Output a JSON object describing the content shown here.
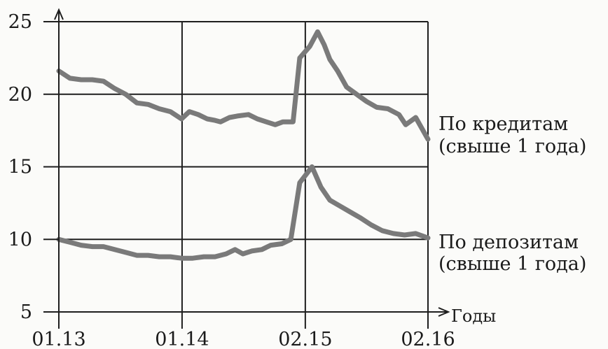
{
  "chart_data": {
    "type": "line",
    "xlabel": "Годы",
    "ylabel": "",
    "ylim": [
      5,
      25
    ],
    "x_ticks": [
      "01.13",
      "01.14",
      "02.15",
      "02.16"
    ],
    "y_ticks": [
      "5",
      "10",
      "15",
      "20",
      "25"
    ],
    "grid": true,
    "series_color": "#7a7a7a",
    "series": [
      {
        "name": "По кредитам (свыше 1 года)",
        "label_lines": [
          "По кредитам",
          "(свыше 1 года)"
        ],
        "points": [
          [
            0,
            21.6
          ],
          [
            1,
            21.1
          ],
          [
            2,
            21.0
          ],
          [
            3,
            21.0
          ],
          [
            4,
            20.9
          ],
          [
            5,
            20.4
          ],
          [
            6,
            20.0
          ],
          [
            7,
            19.4
          ],
          [
            8,
            19.3
          ],
          [
            9,
            19.0
          ],
          [
            10,
            18.8
          ],
          [
            11,
            18.3
          ],
          [
            11.7,
            18.8
          ],
          [
            12.5,
            18.6
          ],
          [
            13.3,
            18.3
          ],
          [
            14,
            18.2
          ],
          [
            14.5,
            18.1
          ],
          [
            15.3,
            18.4
          ],
          [
            16,
            18.5
          ],
          [
            17,
            18.6
          ],
          [
            17.8,
            18.3
          ],
          [
            18.6,
            18.1
          ],
          [
            19.4,
            17.9
          ],
          [
            20.1,
            18.1
          ],
          [
            21,
            18.1
          ],
          [
            21.6,
            22.5
          ],
          [
            22.5,
            23.3
          ],
          [
            23.2,
            24.3
          ],
          [
            23.8,
            23.4
          ],
          [
            24.3,
            22.4
          ],
          [
            25,
            21.6
          ],
          [
            25.8,
            20.5
          ],
          [
            26.7,
            20.0
          ],
          [
            27.6,
            19.5
          ],
          [
            28.5,
            19.1
          ],
          [
            29.5,
            19.0
          ],
          [
            30.5,
            18.6
          ],
          [
            31.1,
            17.9
          ],
          [
            32,
            18.4
          ],
          [
            33.1,
            16.9
          ]
        ]
      },
      {
        "name": "По депозитам (свыше 1 года)",
        "label_lines": [
          "По депозитам",
          "(свыше 1 года)"
        ],
        "points": [
          [
            0,
            10.0
          ],
          [
            1,
            9.8
          ],
          [
            2,
            9.6
          ],
          [
            3,
            9.5
          ],
          [
            4,
            9.5
          ],
          [
            5,
            9.3
          ],
          [
            6,
            9.1
          ],
          [
            7,
            8.9
          ],
          [
            8,
            8.9
          ],
          [
            9,
            8.8
          ],
          [
            10,
            8.8
          ],
          [
            11,
            8.7
          ],
          [
            12,
            8.7
          ],
          [
            13,
            8.8
          ],
          [
            14,
            8.8
          ],
          [
            15,
            9.0
          ],
          [
            15.8,
            9.3
          ],
          [
            16.5,
            9.0
          ],
          [
            17.3,
            9.2
          ],
          [
            18.2,
            9.3
          ],
          [
            19,
            9.6
          ],
          [
            20,
            9.7
          ],
          [
            20.8,
            10.0
          ],
          [
            21.6,
            13.9
          ],
          [
            22.7,
            15.0
          ],
          [
            23.5,
            13.6
          ],
          [
            24.3,
            12.7
          ],
          [
            25.2,
            12.3
          ],
          [
            26.1,
            11.9
          ],
          [
            27,
            11.5
          ],
          [
            28,
            11.0
          ],
          [
            29,
            10.6
          ],
          [
            30,
            10.4
          ],
          [
            31,
            10.3
          ],
          [
            32,
            10.4
          ],
          [
            33.1,
            10.1
          ]
        ]
      }
    ]
  }
}
